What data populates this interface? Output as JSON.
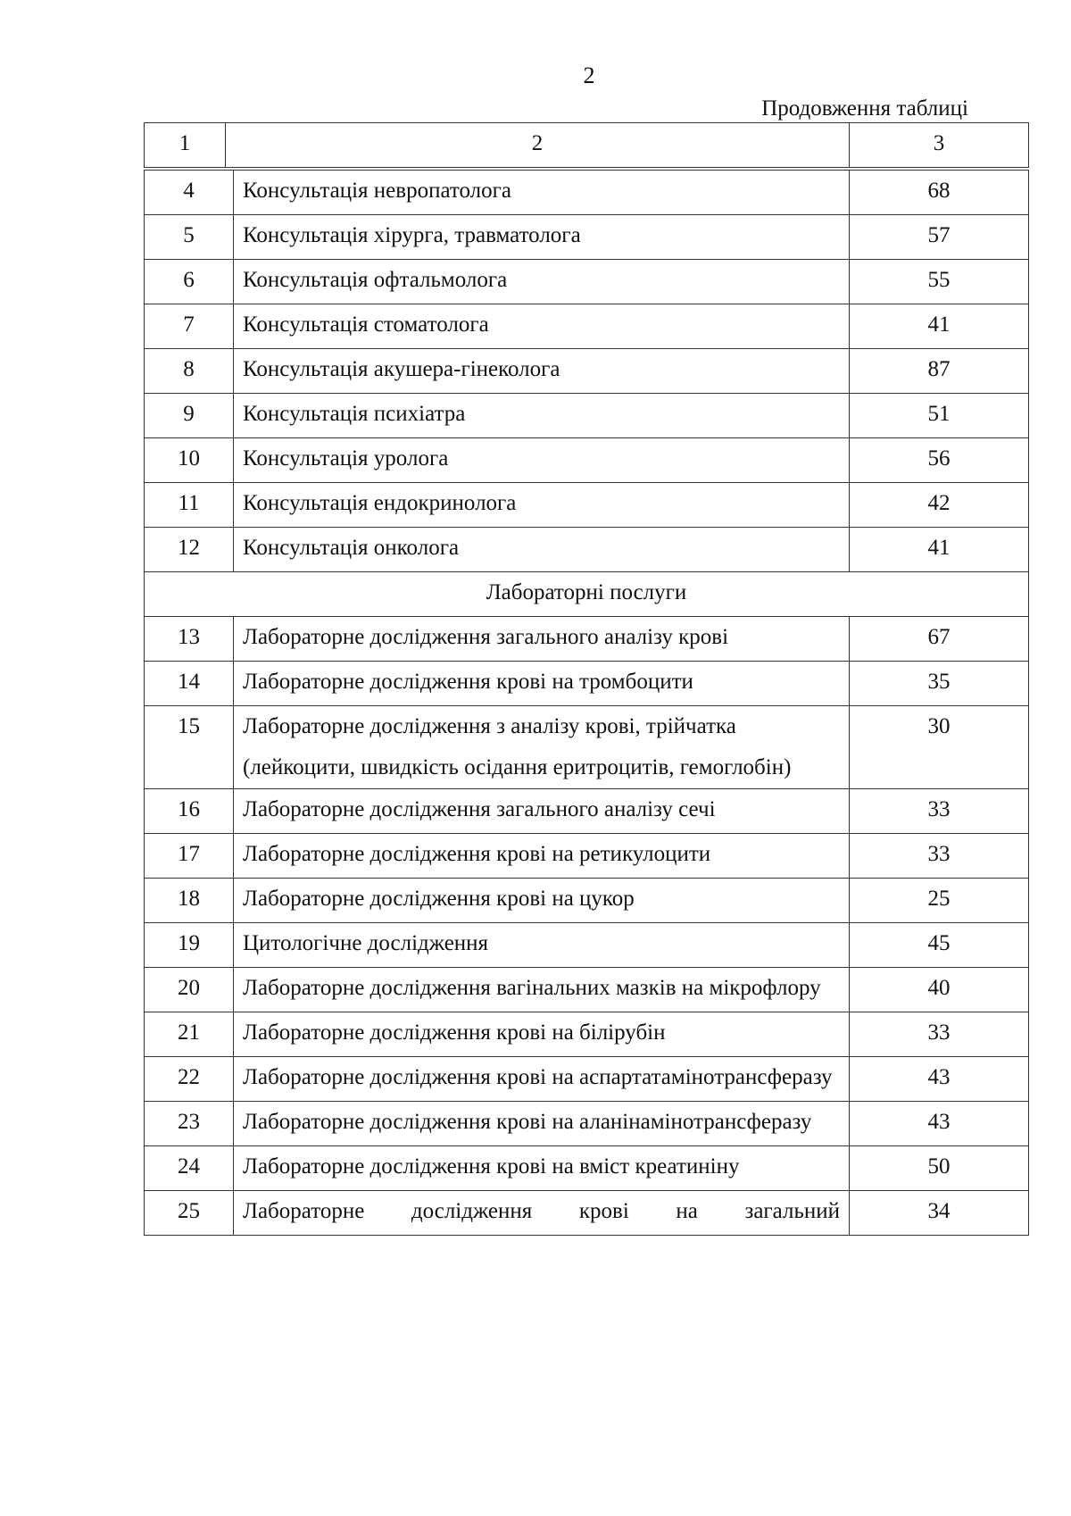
{
  "page_number": "2",
  "continuation": "Продовження таблиці",
  "header": [
    "1",
    "2",
    "3"
  ],
  "rows": [
    {
      "n": "4",
      "text": "Консультація невропатолога",
      "value": "68"
    },
    {
      "n": "5",
      "text": "Консультація хірурга, травматолога",
      "value": "57"
    },
    {
      "n": "6",
      "text": "Консультація офтальмолога",
      "value": "55"
    },
    {
      "n": "7",
      "text": "Консультація стоматолога",
      "value": "41"
    },
    {
      "n": "8",
      "text": "Консультація акушера-гінеколога",
      "value": "87"
    },
    {
      "n": "9",
      "text": "Консультація психіатра",
      "value": "51"
    },
    {
      "n": "10",
      "text": "Консультація уролога",
      "value": "56"
    },
    {
      "n": "11",
      "text": "Консультація ендокринолога",
      "value": "42"
    },
    {
      "n": "12",
      "text": "Консультація онколога",
      "value": "41"
    },
    {
      "section": "Лабораторні послуги"
    },
    {
      "n": "13",
      "text": "Лабораторне дослідження загального аналізу крові",
      "value": "67"
    },
    {
      "n": "14",
      "text": "Лабораторне дослідження крові на тромбоцити",
      "value": "35"
    },
    {
      "n": "15",
      "text": "Лабораторне дослідження з аналізу крові, трійчатка (лейкоцити, швидкість осідання еритроцитів, гемоглобін)",
      "value": "30"
    },
    {
      "n": "16",
      "text": "Лабораторне дослідження загального аналізу сечі",
      "value": "33"
    },
    {
      "n": "17",
      "text": "Лабораторне дослідження крові на ретикулоцити",
      "value": "33"
    },
    {
      "n": "18",
      "text": "Лабораторне дослідження крові на цукор",
      "value": "25"
    },
    {
      "n": "19",
      "text": "Цитологічне дослідження",
      "value": "45"
    },
    {
      "n": "20",
      "text": "Лабораторне дослідження вагінальних мазків на мікрофлору",
      "value": "40",
      "justify": true
    },
    {
      "n": "21",
      "text": "Лабораторне дослідження крові на білірубін",
      "value": "33"
    },
    {
      "n": "22",
      "text": "Лабораторне дослідження крові на аспартатамінотрансферазу",
      "value": "43",
      "justify": true
    },
    {
      "n": "23",
      "text": "Лабораторне дослідження крові на аланінамінотрансферазу",
      "value": "43",
      "justify": true
    },
    {
      "n": "24",
      "text": "Лабораторне дослідження крові на вміст креатиніну",
      "value": "50"
    },
    {
      "n": "25",
      "text": "Лабораторне дослідження крові на загальний",
      "value": "34",
      "justify_last": true
    }
  ]
}
